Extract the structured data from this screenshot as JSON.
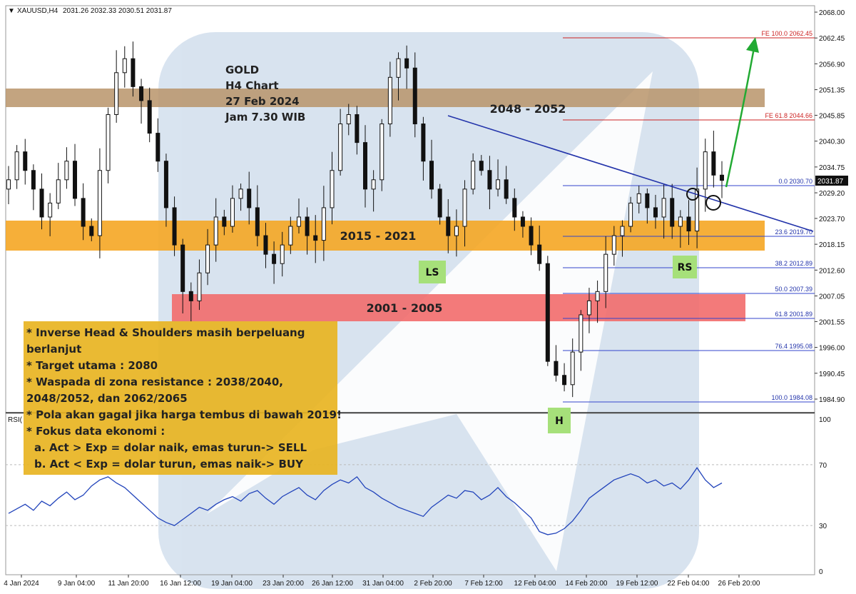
{
  "header": {
    "symbol": "XAUUSD,H4",
    "ohlc": "2031.26 2032.33 2030.51 2031.87"
  },
  "colors": {
    "resistance_band": "#b8946a",
    "support_band": "#f5a623",
    "low_band": "#f26b6b",
    "note_box": "#e8b422",
    "trendline": "#2233aa",
    "candle": "#111111",
    "fib": "#3344cc",
    "fe": "#cc2222",
    "arrow": "#22aa33",
    "rsi": "#2244bb",
    "pattern_label": "#a6e07a",
    "watermark": "#b9cde3"
  },
  "chart_data": {
    "type": "candlestick",
    "symbol": "XAUUSD",
    "timeframe": "H4",
    "last_price": 2031.87,
    "ylim": [
      1979.5,
      2070.5
    ],
    "y_ticks": [
      "2068.00",
      "2062.45",
      "2056.90",
      "2051.35",
      "2045.85",
      "2040.30",
      "2034.75",
      "2029.20",
      "2023.70",
      "2018.15",
      "2012.60",
      "2007.05",
      "2001.55",
      "1996.00",
      "1990.45",
      "1984.90"
    ],
    "x_ticks": [
      "4 Jan 2024",
      "9 Jan 04:00",
      "11 Jan 20:00",
      "16 Jan 12:00",
      "19 Jan 04:00",
      "23 Jan 20:00",
      "26 Jan 12:00",
      "31 Jan 04:00",
      "2 Feb 20:00",
      "7 Feb 12:00",
      "12 Feb 04:00",
      "14 Feb 20:00",
      "19 Feb 12:00",
      "22 Feb 04:00",
      "26 Feb 20:00"
    ],
    "close_path": [
      2032,
      2038,
      2034,
      2030,
      2024,
      2027,
      2032,
      2036,
      2028,
      2022,
      2020,
      2034,
      2046,
      2055,
      2058,
      2052,
      2049,
      2042,
      2036,
      2026,
      2018,
      2008,
      2006,
      2012,
      2018,
      2024,
      2022,
      2028,
      2030,
      2026,
      2020,
      2016,
      2014,
      2018,
      2022,
      2024,
      2020,
      2019,
      2026,
      2034,
      2044,
      2046,
      2040,
      2030,
      2032,
      2044,
      2054,
      2058,
      2056,
      2044,
      2036,
      2030,
      2024,
      2020,
      2022,
      2030,
      2036,
      2034,
      2030,
      2032,
      2028,
      2024,
      2022,
      2018,
      2014,
      1993,
      1990,
      1988,
      1995,
      2003,
      2006,
      2008,
      2016,
      2020,
      2022,
      2027,
      2029,
      2026,
      2024,
      2028,
      2022,
      2024,
      2021,
      2030,
      2038,
      2033,
      2031.87
    ],
    "fibonacci": [
      {
        "level": "0.0",
        "price": "2030.70"
      },
      {
        "level": "23.6",
        "price": "2019.70"
      },
      {
        "level": "38.2",
        "price": "2012.89"
      },
      {
        "level": "50.0",
        "price": "2007.39"
      },
      {
        "level": "61.8",
        "price": "2001.89"
      },
      {
        "level": "76.4",
        "price": "1995.08"
      },
      {
        "level": "100.0",
        "price": "1984.08"
      }
    ],
    "fib_extension": [
      {
        "level": "FE 100.0",
        "price": "2062.45"
      },
      {
        "level": "FE 61.8",
        "price": "2044.66"
      }
    ],
    "zones": [
      {
        "label": "2048 - 2052",
        "low": 2048,
        "high": 2052
      },
      {
        "label": "2015 - 2021",
        "low": 2015,
        "high": 2021
      },
      {
        "label": "2001 - 2005",
        "low": 2001,
        "high": 2005
      }
    ],
    "patterns": [
      "LS",
      "H",
      "RS"
    ],
    "rsi": {
      "label": "RSI(",
      "ticks": [
        "100",
        "70",
        "30",
        "0"
      ],
      "values": [
        38,
        41,
        44,
        40,
        46,
        43,
        48,
        52,
        47,
        50,
        56,
        60,
        62,
        58,
        55,
        50,
        45,
        40,
        35,
        32,
        30,
        34,
        38,
        42,
        40,
        44,
        47,
        49,
        46,
        51,
        53,
        48,
        44,
        49,
        52,
        55,
        50,
        47,
        53,
        57,
        60,
        58,
        62,
        55,
        52,
        48,
        45,
        42,
        40,
        38,
        36,
        42,
        46,
        50,
        48,
        53,
        52,
        47,
        50,
        55,
        49,
        45,
        40,
        35,
        26,
        24,
        25,
        28,
        33,
        40,
        48,
        52,
        56,
        60,
        62,
        64,
        62,
        58,
        60,
        56,
        58,
        54,
        60,
        68,
        60,
        55,
        58
      ]
    },
    "title_lines": [
      "GOLD",
      "H4 Chart",
      "27 Feb 2024",
      "Jam 7.30 WIB"
    ]
  },
  "notes": [
    "* Inverse Head & Shoulders masih berpeluang",
    "berlanjut",
    "* Target utama : 2080",
    "* Waspada di zona resistance : 2038/2040,",
    "2048/2052, dan 2062/2065",
    "* Pola akan gagal jika harga tembus di bawah 2019!",
    "* Fokus data ekonomi :",
    "a. Act > Exp = dolar naik, emas turun-> SELL",
    "b. Act < Exp = dolar turun, emas naik-> BUY"
  ]
}
